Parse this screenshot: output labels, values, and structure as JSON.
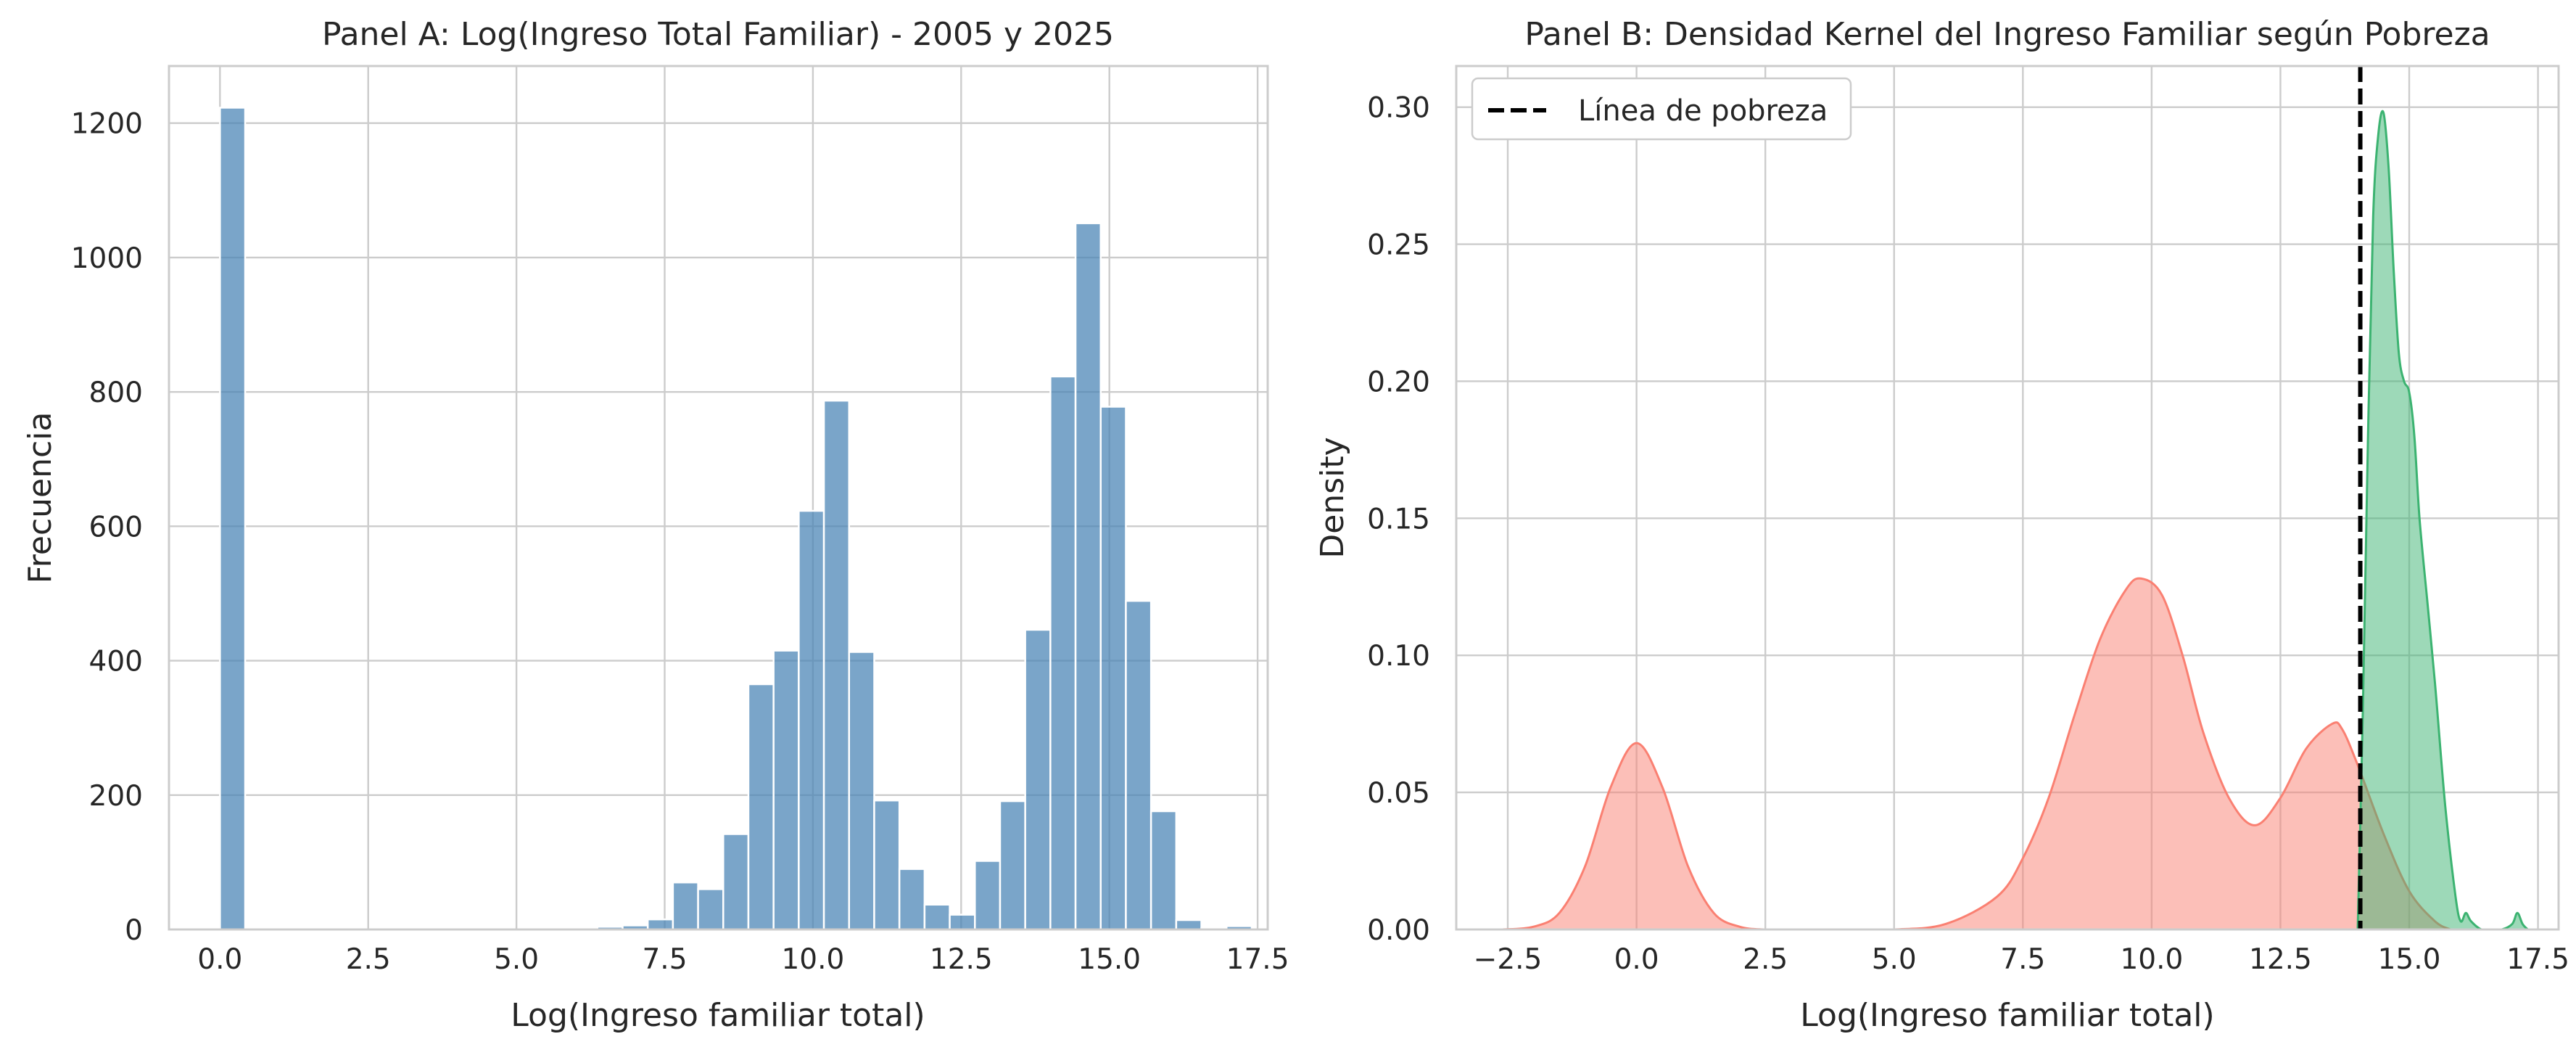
{
  "colors": {
    "hist": "#4682b4",
    "kde_pobre": "#fa8072",
    "kde_no_pobre": "#3cb371",
    "poverty_line": "#000000"
  },
  "chart_data": [
    {
      "type": "bar",
      "title": "Panel A: Log(Ingreso Total Familiar) - 2005 y 2025",
      "xlabel": "Log(Ingreso familiar total)",
      "ylabel": "Frecuencia",
      "xlim": [
        -0.86,
        17.67
      ],
      "ylim": [
        0,
        1285
      ],
      "xticks": [
        "0.0",
        "2.5",
        "5.0",
        "7.5",
        "10.0",
        "12.5",
        "15.0",
        "17.5"
      ],
      "xtick_values": [
        0,
        2.5,
        5,
        7.5,
        10,
        12.5,
        15,
        17.5
      ],
      "yticks": [
        "0",
        "200",
        "400",
        "600",
        "800",
        "1000",
        "1200"
      ],
      "ytick_values": [
        0,
        200,
        400,
        600,
        800,
        1000,
        1200
      ],
      "bin_start": 0,
      "bin_width": 0.4244,
      "values": [
        1223,
        0,
        0,
        0,
        0,
        0,
        0,
        0,
        0,
        0,
        0,
        0,
        0,
        0,
        0,
        4,
        6,
        15,
        70,
        60,
        142,
        365,
        415,
        623,
        787,
        413,
        192,
        90,
        37,
        22,
        102,
        191,
        446,
        823,
        1051,
        778,
        489,
        176,
        14,
        2,
        5
      ]
    },
    {
      "type": "area",
      "title": "Panel B: Densidad Kernel del Ingreso Familiar según Pobreza",
      "xlabel": "Log(Ingreso familiar total)",
      "ylabel": "Density",
      "xlim": [
        -3.5,
        17.9
      ],
      "ylim": [
        0,
        0.315
      ],
      "xticks": [
        "−2.5",
        "0.0",
        "2.5",
        "5.0",
        "7.5",
        "10.0",
        "12.5",
        "15.0",
        "17.5"
      ],
      "xtick_values": [
        -2.5,
        0,
        2.5,
        5,
        7.5,
        10,
        12.5,
        15,
        17.5
      ],
      "yticks": [
        "0.00",
        "0.05",
        "0.10",
        "0.15",
        "0.20",
        "0.25",
        "0.30"
      ],
      "ytick_values": [
        0,
        0.05,
        0.1,
        0.15,
        0.2,
        0.25,
        0.3
      ],
      "legend": {
        "label": "Línea de pobreza",
        "position": "upper-left"
      },
      "poverty_line_x": 14.05,
      "series": [
        {
          "x": [
            -2.6,
            -2.0,
            -1.5,
            -1.0,
            -0.5,
            0.0,
            0.5,
            1.0,
            1.5,
            2.0,
            2.5,
            3.0,
            4.0,
            5.0,
            6.0,
            7.0,
            7.5,
            8.0,
            8.5,
            9.0,
            9.5,
            9.8,
            10.2,
            10.6,
            11.0,
            11.5,
            12.0,
            12.5,
            13.0,
            13.5,
            13.7,
            14.0,
            14.5,
            15.0,
            15.5,
            15.8
          ],
          "y": [
            0.0,
            0.001,
            0.006,
            0.023,
            0.052,
            0.068,
            0.052,
            0.023,
            0.006,
            0.001,
            0.0,
            0.0,
            0.0,
            0.0,
            0.002,
            0.012,
            0.026,
            0.048,
            0.078,
            0.106,
            0.124,
            0.128,
            0.122,
            0.1,
            0.072,
            0.048,
            0.038,
            0.048,
            0.066,
            0.075,
            0.073,
            0.06,
            0.035,
            0.014,
            0.003,
            0.0
          ]
        },
        {
          "x": [
            14.0,
            14.1,
            14.2,
            14.3,
            14.4,
            14.5,
            14.6,
            14.7,
            14.8,
            14.9,
            15.0,
            15.1,
            15.2,
            15.35,
            15.5,
            15.7,
            15.9,
            16.0,
            16.1,
            16.2,
            16.4,
            16.6,
            16.8,
            17.0,
            17.1,
            17.2,
            17.3
          ],
          "y": [
            0.0,
            0.08,
            0.18,
            0.26,
            0.29,
            0.298,
            0.278,
            0.24,
            0.21,
            0.2,
            0.196,
            0.18,
            0.15,
            0.12,
            0.09,
            0.045,
            0.012,
            0.003,
            0.006,
            0.003,
            0.0,
            0.0,
            0.0,
            0.002,
            0.006,
            0.002,
            0.0
          ]
        }
      ]
    }
  ]
}
